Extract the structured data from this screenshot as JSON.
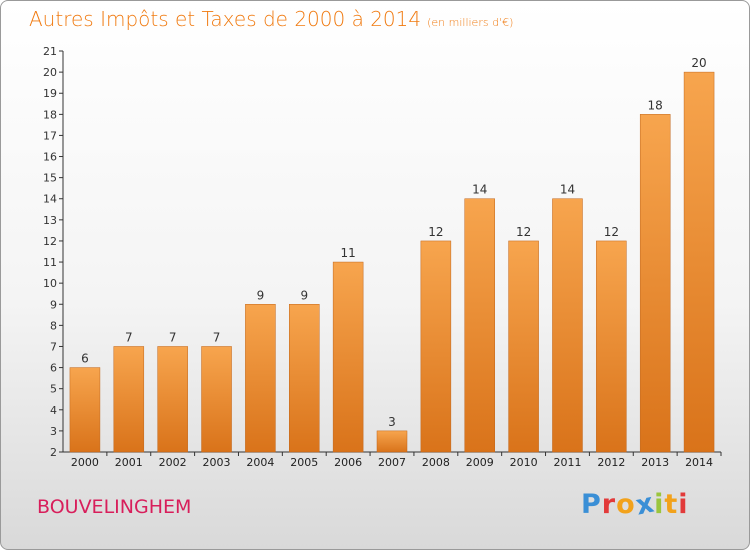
{
  "title": "Autres Impôts et Taxes de 2000 à 2014",
  "subtitle": "(en milliers d'€)",
  "town": "BOUVELINGHEM",
  "logo": {
    "text": "Proxiti",
    "letters": [
      {
        "ch": "P",
        "color": "#3a8fd6"
      },
      {
        "ch": "r",
        "color": "#e23a3a"
      },
      {
        "ch": "o",
        "color": "#f2a21b"
      },
      {
        "ch": "x",
        "color": "#3a8fd6"
      },
      {
        "ch": "i",
        "color": "#9bc53d"
      },
      {
        "ch": "t",
        "color": "#f2a21b"
      },
      {
        "ch": "i",
        "color": "#e23a3a"
      }
    ]
  },
  "colors": {
    "title": "#f07a10",
    "bar_light": "#f7a54e",
    "bar_dark": "#d9731a",
    "town": "#d81e5b",
    "axis": "#333333"
  },
  "chart_data": {
    "type": "bar",
    "title": "Autres Impôts et Taxes de 2000 à 2014",
    "subtitle": "(en milliers d'€)",
    "categories": [
      "2000",
      "2001",
      "2002",
      "2003",
      "2004",
      "2005",
      "2006",
      "2007",
      "2008",
      "2009",
      "2010",
      "2011",
      "2012",
      "2013",
      "2014"
    ],
    "values": [
      6,
      7,
      7,
      7,
      9,
      9,
      11,
      3,
      12,
      14,
      12,
      14,
      12,
      18,
      20
    ],
    "ylim": [
      2,
      21
    ],
    "yticks": [
      2,
      3,
      4,
      5,
      6,
      7,
      8,
      9,
      10,
      11,
      12,
      13,
      14,
      15,
      16,
      17,
      18,
      19,
      20,
      21
    ],
    "xlabel": "",
    "ylabel": "",
    "grid": false,
    "legend": "none"
  }
}
